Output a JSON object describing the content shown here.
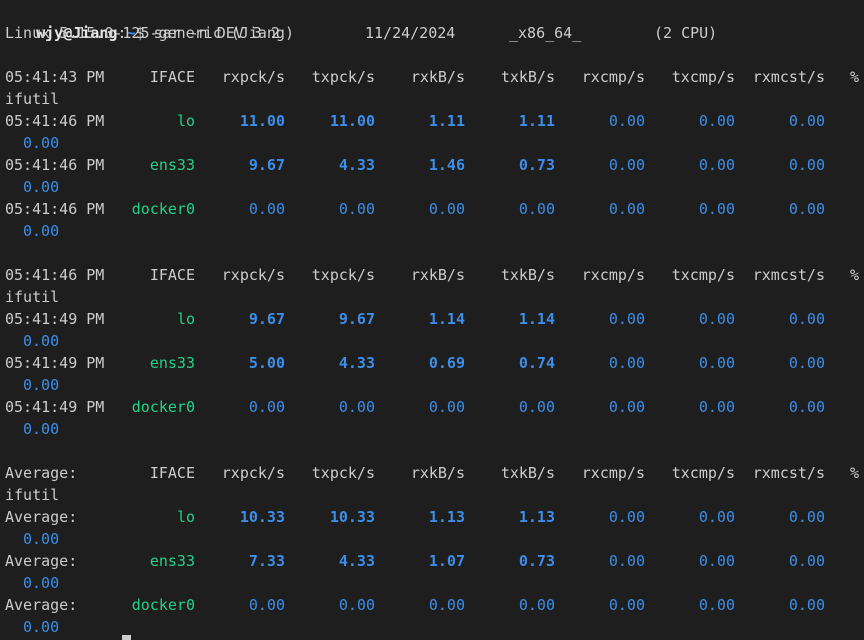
{
  "prompt": {
    "user": "wjy@Jiang",
    "sep": ":",
    "path": "~",
    "symbol": "$",
    "command": " sar -n DEV 3 2"
  },
  "sysinfo": {
    "kernel": "Linux 5.15.0-125-generic (Jiang)",
    "date": "11/24/2024",
    "arch": "_x86_64_",
    "cpu": "(2 CPU)"
  },
  "headers": [
    "IFACE",
    "rxpck/s",
    "txpck/s",
    "rxkB/s",
    "txkB/s",
    "rxcmp/s",
    "txcmp/s",
    "rxmcst/s",
    "%",
    "ifutil"
  ],
  "blocks": [
    {
      "time": "05:41:43 PM",
      "rows": [
        {
          "time": "05:41:46 PM",
          "iface": "lo",
          "rxpck": "11.00",
          "txpck": "11.00",
          "rxkb": "1.11",
          "txkb": "1.11",
          "rxcmp": "0.00",
          "txcmp": "0.00",
          "rxmcst": "0.00",
          "ifutil": "0.00",
          "bold": true
        },
        {
          "time": "05:41:46 PM",
          "iface": "ens33",
          "rxpck": "9.67",
          "txpck": "4.33",
          "rxkb": "1.46",
          "txkb": "0.73",
          "rxcmp": "0.00",
          "txcmp": "0.00",
          "rxmcst": "0.00",
          "ifutil": "0.00",
          "bold": true
        },
        {
          "time": "05:41:46 PM",
          "iface": "docker0",
          "rxpck": "0.00",
          "txpck": "0.00",
          "rxkb": "0.00",
          "txkb": "0.00",
          "rxcmp": "0.00",
          "txcmp": "0.00",
          "rxmcst": "0.00",
          "ifutil": "0.00",
          "bold": false
        }
      ]
    },
    {
      "time": "05:41:46 PM",
      "rows": [
        {
          "time": "05:41:49 PM",
          "iface": "lo",
          "rxpck": "9.67",
          "txpck": "9.67",
          "rxkb": "1.14",
          "txkb": "1.14",
          "rxcmp": "0.00",
          "txcmp": "0.00",
          "rxmcst": "0.00",
          "ifutil": "0.00",
          "bold": true
        },
        {
          "time": "05:41:49 PM",
          "iface": "ens33",
          "rxpck": "5.00",
          "txpck": "4.33",
          "rxkb": "0.69",
          "txkb": "0.74",
          "rxcmp": "0.00",
          "txcmp": "0.00",
          "rxmcst": "0.00",
          "ifutil": "0.00",
          "bold": true
        },
        {
          "time": "05:41:49 PM",
          "iface": "docker0",
          "rxpck": "0.00",
          "txpck": "0.00",
          "rxkb": "0.00",
          "txkb": "0.00",
          "rxcmp": "0.00",
          "txcmp": "0.00",
          "rxmcst": "0.00",
          "ifutil": "0.00",
          "bold": false
        }
      ]
    },
    {
      "time": "Average:",
      "rows": [
        {
          "time": "Average:",
          "iface": "lo",
          "rxpck": "10.33",
          "txpck": "10.33",
          "rxkb": "1.13",
          "txkb": "1.13",
          "rxcmp": "0.00",
          "txcmp": "0.00",
          "rxmcst": "0.00",
          "ifutil": "0.00",
          "bold": true
        },
        {
          "time": "Average:",
          "iface": "ens33",
          "rxpck": "7.33",
          "txpck": "4.33",
          "rxkb": "1.07",
          "txkb": "0.73",
          "rxcmp": "0.00",
          "txcmp": "0.00",
          "rxmcst": "0.00",
          "ifutil": "0.00",
          "bold": true
        },
        {
          "time": "Average:",
          "iface": "docker0",
          "rxpck": "0.00",
          "txpck": "0.00",
          "rxkb": "0.00",
          "txkb": "0.00",
          "rxcmp": "0.00",
          "txcmp": "0.00",
          "rxmcst": "0.00",
          "ifutil": "0.00",
          "bold": false
        }
      ]
    }
  ],
  "colors": {
    "background": "#1e1e1e",
    "text": "#cccccc",
    "iface": "#23d18b",
    "value": "#3b8eea"
  }
}
